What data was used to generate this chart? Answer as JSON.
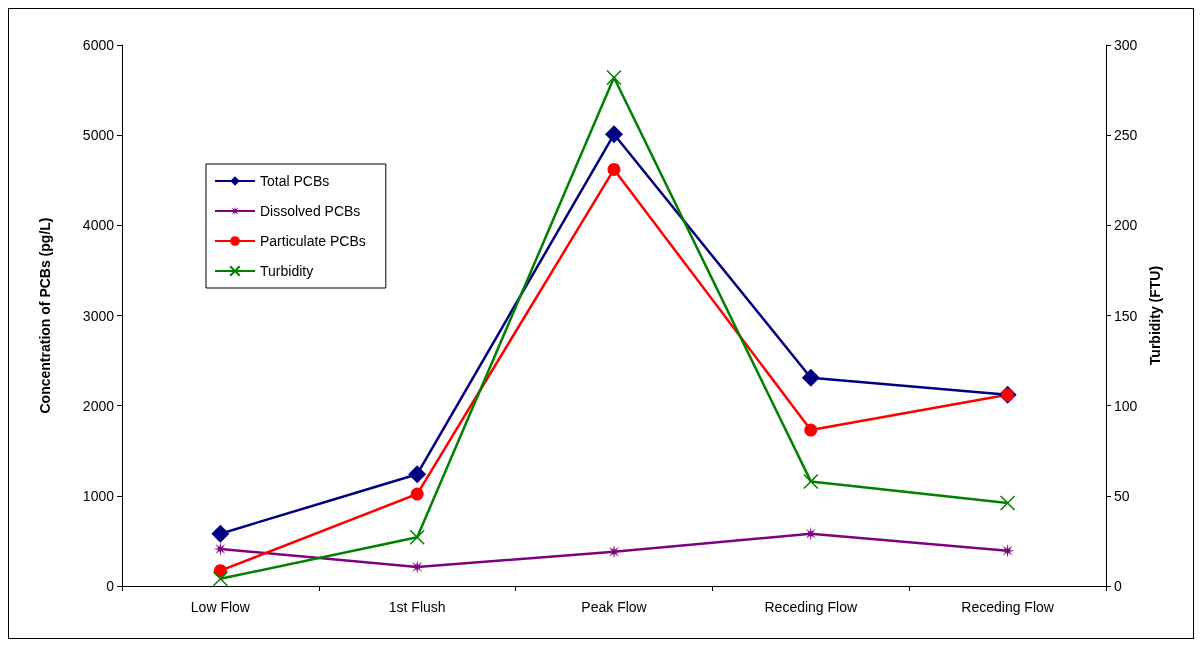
{
  "chart_data": {
    "type": "line",
    "ylabel": "Concentration of PCBs (pg/L)",
    "y2label": "Turbidity (FTU)",
    "categories": [
      "Low Flow",
      "1st Flush",
      "Peak Flow",
      "Receding Flow",
      "Receding Flow"
    ],
    "series": [
      {
        "name": "Total PCBs",
        "color": "#000080",
        "marker": "diamond",
        "values": [
          580,
          1240,
          5010,
          2310,
          2120
        ]
      },
      {
        "name": "Dissolved PCBs",
        "color": "#800080",
        "marker": "star",
        "values": [
          410,
          210,
          380,
          580,
          390
        ]
      },
      {
        "name": "Particulate PCBs",
        "color": "#ff0000",
        "marker": "circle",
        "values": [
          170,
          1020,
          4620,
          1730,
          2120
        ]
      },
      {
        "name": "Turbidity",
        "color": "#008000",
        "marker": "cross",
        "axis": "y2",
        "values": [
          4,
          27,
          282,
          58,
          46
        ]
      }
    ],
    "ylim": [
      0,
      6000
    ],
    "yticks": [
      0,
      1000,
      2000,
      3000,
      4000,
      5000,
      6000
    ],
    "y2lim": [
      0,
      300
    ],
    "y2ticks": [
      0,
      50,
      100,
      150,
      200,
      250,
      300
    ],
    "grid": false,
    "legend": "top left",
    "line_style": "solid"
  }
}
